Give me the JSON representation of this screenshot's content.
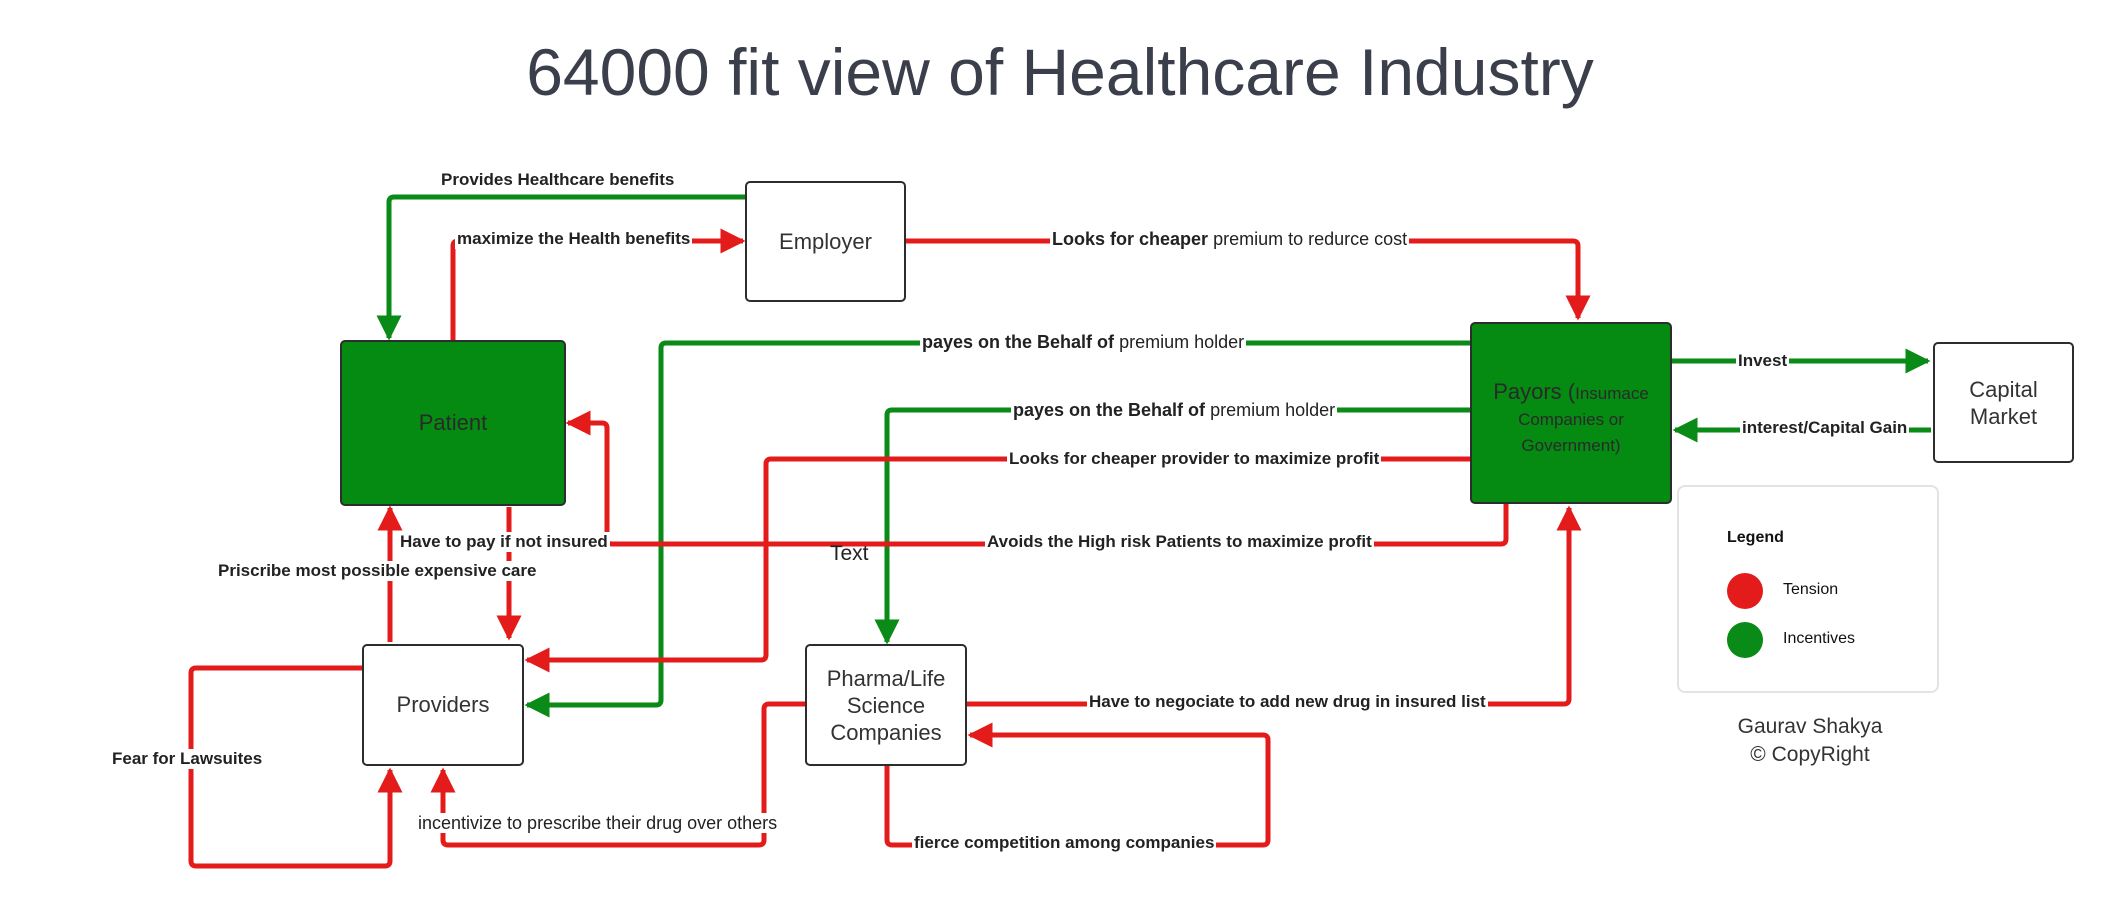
{
  "title": "64000 fit view of Healthcare  Industry",
  "colors": {
    "tension": "#e31b1b",
    "incentive": "#0a8a16",
    "node_fill_green": "#058a12"
  },
  "nodes": {
    "employer": "Employer",
    "patient": "Patient",
    "payors_main": "Payors (",
    "payors_sub": "Insumace Companies or Government)",
    "capital_market": "Capital Market",
    "providers": "Providers",
    "pharma": "Pharma/Life Science Companies"
  },
  "labels": {
    "provides_benefits": "Provides Healthcare benefits",
    "maximize_benefits": "maximize the Health benefits",
    "cheaper_premium_bold": "Looks for cheaper",
    "cheaper_premium_rest": "premium to redurce cost",
    "payes_1_bold": "payes on the Behalf of",
    "payes_1_rest": "premium holder",
    "payes_2_bold": "payes on the Behalf of",
    "payes_2_rest": "premium holder",
    "cheaper_provider": "Looks for cheaper provider to maximize profit",
    "invest": "Invest",
    "interest": "interest/Capital Gain",
    "pay_if_not_insured": "Have to pay if not insured",
    "avoid_high_risk": "Avoids the High risk Patients to maximize profit",
    "prescribe_expensive": "Priscribe most possible expensive care",
    "text_placeholder": "Text",
    "fear_lawsuits": "Fear for Lawsuites",
    "negotiate_drug": "Have to negociate to add new drug in insured list",
    "incentivize": "incentivize to prescribe their drug over others",
    "competition": "fierce competition among companies"
  },
  "legend": {
    "title": "Legend",
    "items": [
      {
        "label": "Tension",
        "color": "#e31b1b"
      },
      {
        "label": "Incentives",
        "color": "#0a8a16"
      }
    ]
  },
  "credit": {
    "author": "Gaurav Shakya",
    "copyright": "CopyRight"
  }
}
